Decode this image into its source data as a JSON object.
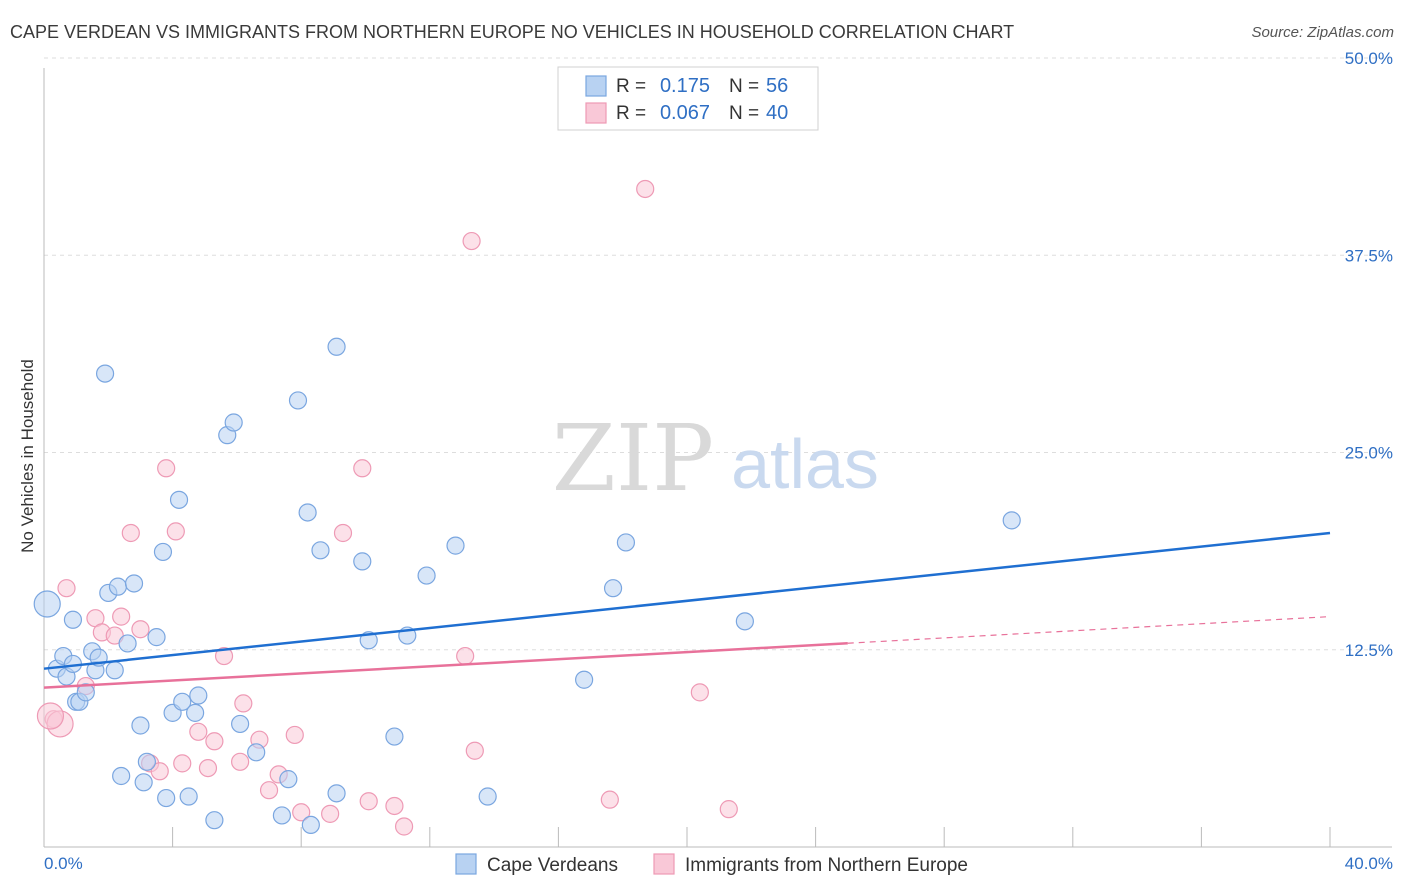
{
  "title": "CAPE VERDEAN VS IMMIGRANTS FROM NORTHERN EUROPE NO VEHICLES IN HOUSEHOLD CORRELATION CHART",
  "source": "Source: ZipAtlas.com",
  "watermark": {
    "zip": "ZIP",
    "atlas": "atlas"
  },
  "colors": {
    "blue_fill": "#b8d2f2",
    "blue_stroke": "#7aa6e0",
    "blue_line": "#1f6fd1",
    "pink_fill": "#f9c8d7",
    "pink_stroke": "#ee9ab5",
    "pink_line": "#e8719a",
    "axis_value": "#2f6fc4",
    "grid": "#dddddd"
  },
  "legend": {
    "rows": [
      {
        "r_label": "R =",
        "r_value": "0.175",
        "n_label": "N =",
        "n_value": "56",
        "series": "blue"
      },
      {
        "r_label": "R =",
        "r_value": "0.067",
        "n_label": "N =",
        "n_value": "40",
        "series": "pink"
      }
    ]
  },
  "bottom_legend": [
    {
      "label": "Cape Verdeans",
      "series": "blue"
    },
    {
      "label": "Immigrants from Northern Europe",
      "series": "pink"
    }
  ],
  "chart_data": {
    "type": "scatter",
    "xlabel": "",
    "ylabel": "No Vehicles in Household",
    "xlim": [
      0,
      40
    ],
    "ylim": [
      0,
      50
    ],
    "x_tick_labels": [
      "0.0%",
      "40.0%"
    ],
    "y_ticks": [
      12.5,
      25.0,
      37.5,
      50.0
    ],
    "y_tick_labels": [
      "12.5%",
      "25.0%",
      "37.5%",
      "50.0%"
    ],
    "grid": true,
    "series": [
      {
        "name": "Cape Verdeans",
        "trend": {
          "x": [
            0,
            40
          ],
          "y": [
            11.3,
            19.9
          ]
        },
        "points": [
          [
            0.1,
            15.4
          ],
          [
            0.4,
            11.3
          ],
          [
            0.6,
            12.1
          ],
          [
            0.7,
            10.8
          ],
          [
            0.9,
            11.6
          ],
          [
            0.9,
            14.4
          ],
          [
            1.0,
            9.2
          ],
          [
            1.1,
            9.2
          ],
          [
            1.3,
            9.8
          ],
          [
            1.5,
            12.4
          ],
          [
            1.6,
            11.2
          ],
          [
            1.7,
            12.0
          ],
          [
            1.9,
            30.0
          ],
          [
            2.0,
            16.1
          ],
          [
            2.2,
            11.2
          ],
          [
            2.3,
            16.5
          ],
          [
            2.4,
            4.5
          ],
          [
            2.6,
            12.9
          ],
          [
            2.8,
            16.7
          ],
          [
            3.0,
            7.7
          ],
          [
            3.1,
            4.1
          ],
          [
            3.2,
            5.4
          ],
          [
            3.5,
            13.3
          ],
          [
            3.7,
            18.7
          ],
          [
            3.8,
            3.1
          ],
          [
            4.0,
            8.5
          ],
          [
            4.2,
            22.0
          ],
          [
            4.3,
            9.2
          ],
          [
            4.5,
            3.2
          ],
          [
            4.7,
            8.5
          ],
          [
            4.8,
            9.6
          ],
          [
            5.3,
            1.7
          ],
          [
            5.7,
            26.1
          ],
          [
            5.9,
            26.9
          ],
          [
            6.1,
            7.8
          ],
          [
            6.6,
            6.0
          ],
          [
            7.4,
            2.0
          ],
          [
            7.6,
            4.3
          ],
          [
            7.9,
            28.3
          ],
          [
            8.2,
            21.2
          ],
          [
            8.3,
            1.4
          ],
          [
            8.6,
            18.8
          ],
          [
            9.1,
            3.4
          ],
          [
            9.1,
            31.7
          ],
          [
            9.9,
            18.1
          ],
          [
            10.1,
            13.1
          ],
          [
            10.9,
            7.0
          ],
          [
            11.3,
            13.4
          ],
          [
            11.9,
            17.2
          ],
          [
            12.8,
            19.1
          ],
          [
            13.8,
            3.2
          ],
          [
            16.8,
            10.6
          ],
          [
            17.7,
            16.4
          ],
          [
            18.1,
            19.3
          ],
          [
            21.8,
            14.3
          ],
          [
            30.1,
            20.7
          ]
        ]
      },
      {
        "name": "Immigrants from Northern Europe",
        "trend": {
          "x": [
            0,
            40
          ],
          "y": [
            10.1,
            14.6
          ],
          "solid_until_x": 25
        },
        "points": [
          [
            0.3,
            8.1
          ],
          [
            0.5,
            7.8
          ],
          [
            0.7,
            16.4
          ],
          [
            1.3,
            10.2
          ],
          [
            1.6,
            14.5
          ],
          [
            1.8,
            13.6
          ],
          [
            2.2,
            13.4
          ],
          [
            2.4,
            14.6
          ],
          [
            2.7,
            19.9
          ],
          [
            3.0,
            13.8
          ],
          [
            3.3,
            5.3
          ],
          [
            3.6,
            4.8
          ],
          [
            3.8,
            24.0
          ],
          [
            4.1,
            20.0
          ],
          [
            4.3,
            5.3
          ],
          [
            4.8,
            7.3
          ],
          [
            5.1,
            5.0
          ],
          [
            5.3,
            6.7
          ],
          [
            5.6,
            12.1
          ],
          [
            6.1,
            5.4
          ],
          [
            6.2,
            9.1
          ],
          [
            6.7,
            6.8
          ],
          [
            7.0,
            3.6
          ],
          [
            7.3,
            4.6
          ],
          [
            7.8,
            7.1
          ],
          [
            8.0,
            2.2
          ],
          [
            8.9,
            2.1
          ],
          [
            9.3,
            19.9
          ],
          [
            9.9,
            24.0
          ],
          [
            10.1,
            2.9
          ],
          [
            10.9,
            2.6
          ],
          [
            11.2,
            1.3
          ],
          [
            13.1,
            12.1
          ],
          [
            13.3,
            38.4
          ],
          [
            13.4,
            6.1
          ],
          [
            17.6,
            3.0
          ],
          [
            18.7,
            41.7
          ],
          [
            20.4,
            9.8
          ],
          [
            21.3,
            2.4
          ],
          [
            0.2,
            8.3
          ]
        ]
      }
    ]
  }
}
